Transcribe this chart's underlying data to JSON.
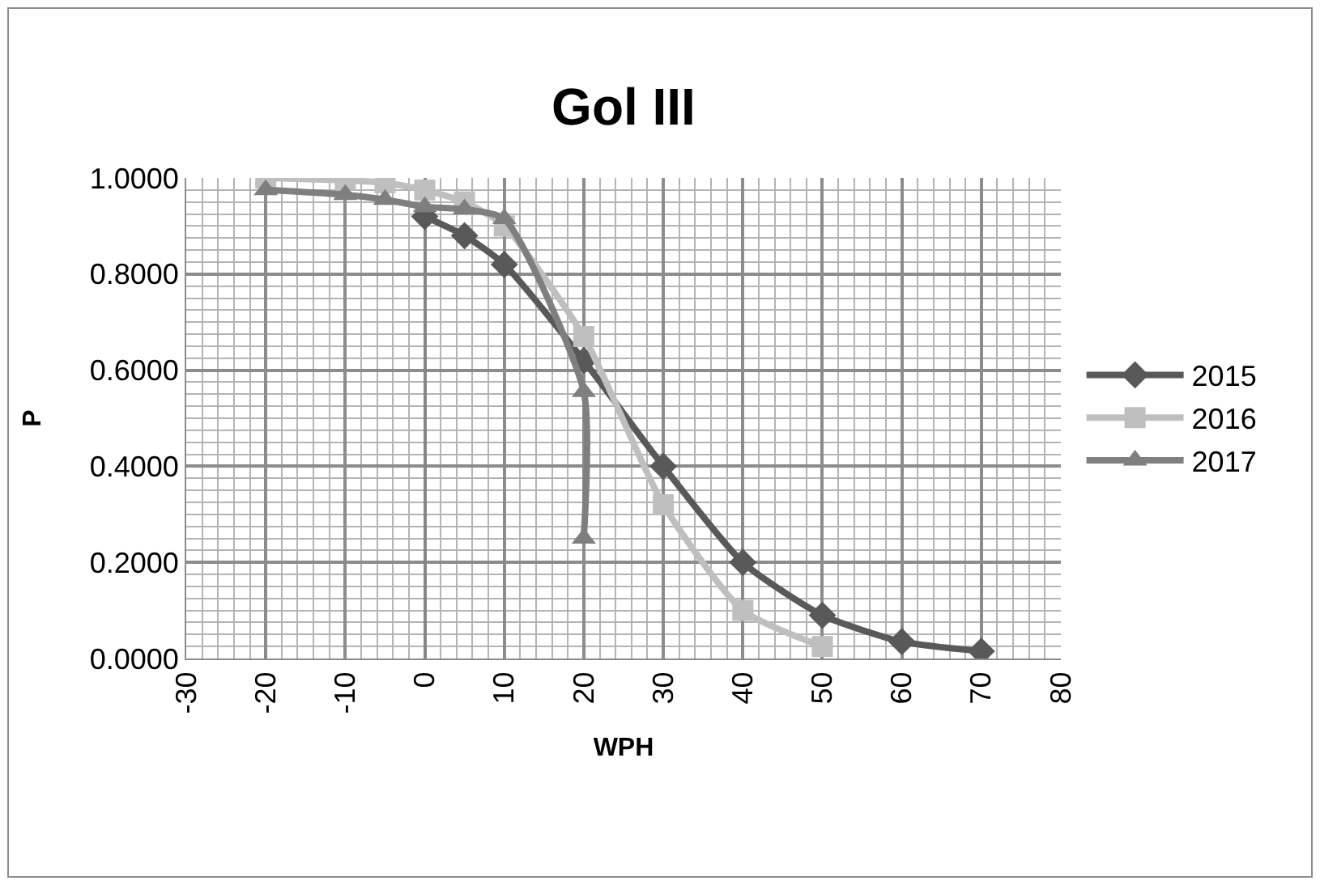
{
  "chart_data": {
    "type": "line",
    "title": "Gol III",
    "xlabel": "WPH",
    "ylabel": "P",
    "xlim": [
      -30,
      80
    ],
    "xticks": [
      -30,
      -20,
      -10,
      0,
      10,
      20,
      30,
      40,
      50,
      60,
      70,
      80
    ],
    "ylim": [
      0,
      1
    ],
    "yticks": [
      {
        "value": 0,
        "label": "0.0000"
      },
      {
        "value": 0.2,
        "label": "0.2000"
      },
      {
        "value": 0.4,
        "label": "0.4000"
      },
      {
        "value": 0.6,
        "label": "0.6000"
      },
      {
        "value": 0.8,
        "label": "0.8000"
      },
      {
        "value": 1,
        "label": "1.0000"
      }
    ],
    "grid": true,
    "legend": "right",
    "series": [
      {
        "name": "2015",
        "color": "#595959",
        "marker": "diamond",
        "x": [
          0,
          5,
          10,
          20,
          30,
          40,
          50,
          60,
          70
        ],
        "values": [
          0.92,
          0.88,
          0.82,
          0.62,
          0.4,
          0.2,
          0.09,
          0.035,
          0.015
        ]
      },
      {
        "name": "2016",
        "color": "#bfbfbf",
        "marker": "square",
        "x": [
          -20,
          -10,
          -5,
          0,
          5,
          10,
          20,
          30,
          40,
          50
        ],
        "values": [
          1.0,
          0.995,
          0.99,
          0.975,
          0.95,
          0.9,
          0.67,
          0.32,
          0.1,
          0.025
        ]
      },
      {
        "name": "2017",
        "color": "#7f7f7f",
        "marker": "triangle",
        "x": [
          -20,
          -10,
          -5,
          0,
          5,
          10,
          20,
          20
        ],
        "values": [
          0.975,
          0.965,
          0.955,
          0.94,
          0.935,
          0.915,
          0.555,
          0.25
        ]
      }
    ]
  }
}
